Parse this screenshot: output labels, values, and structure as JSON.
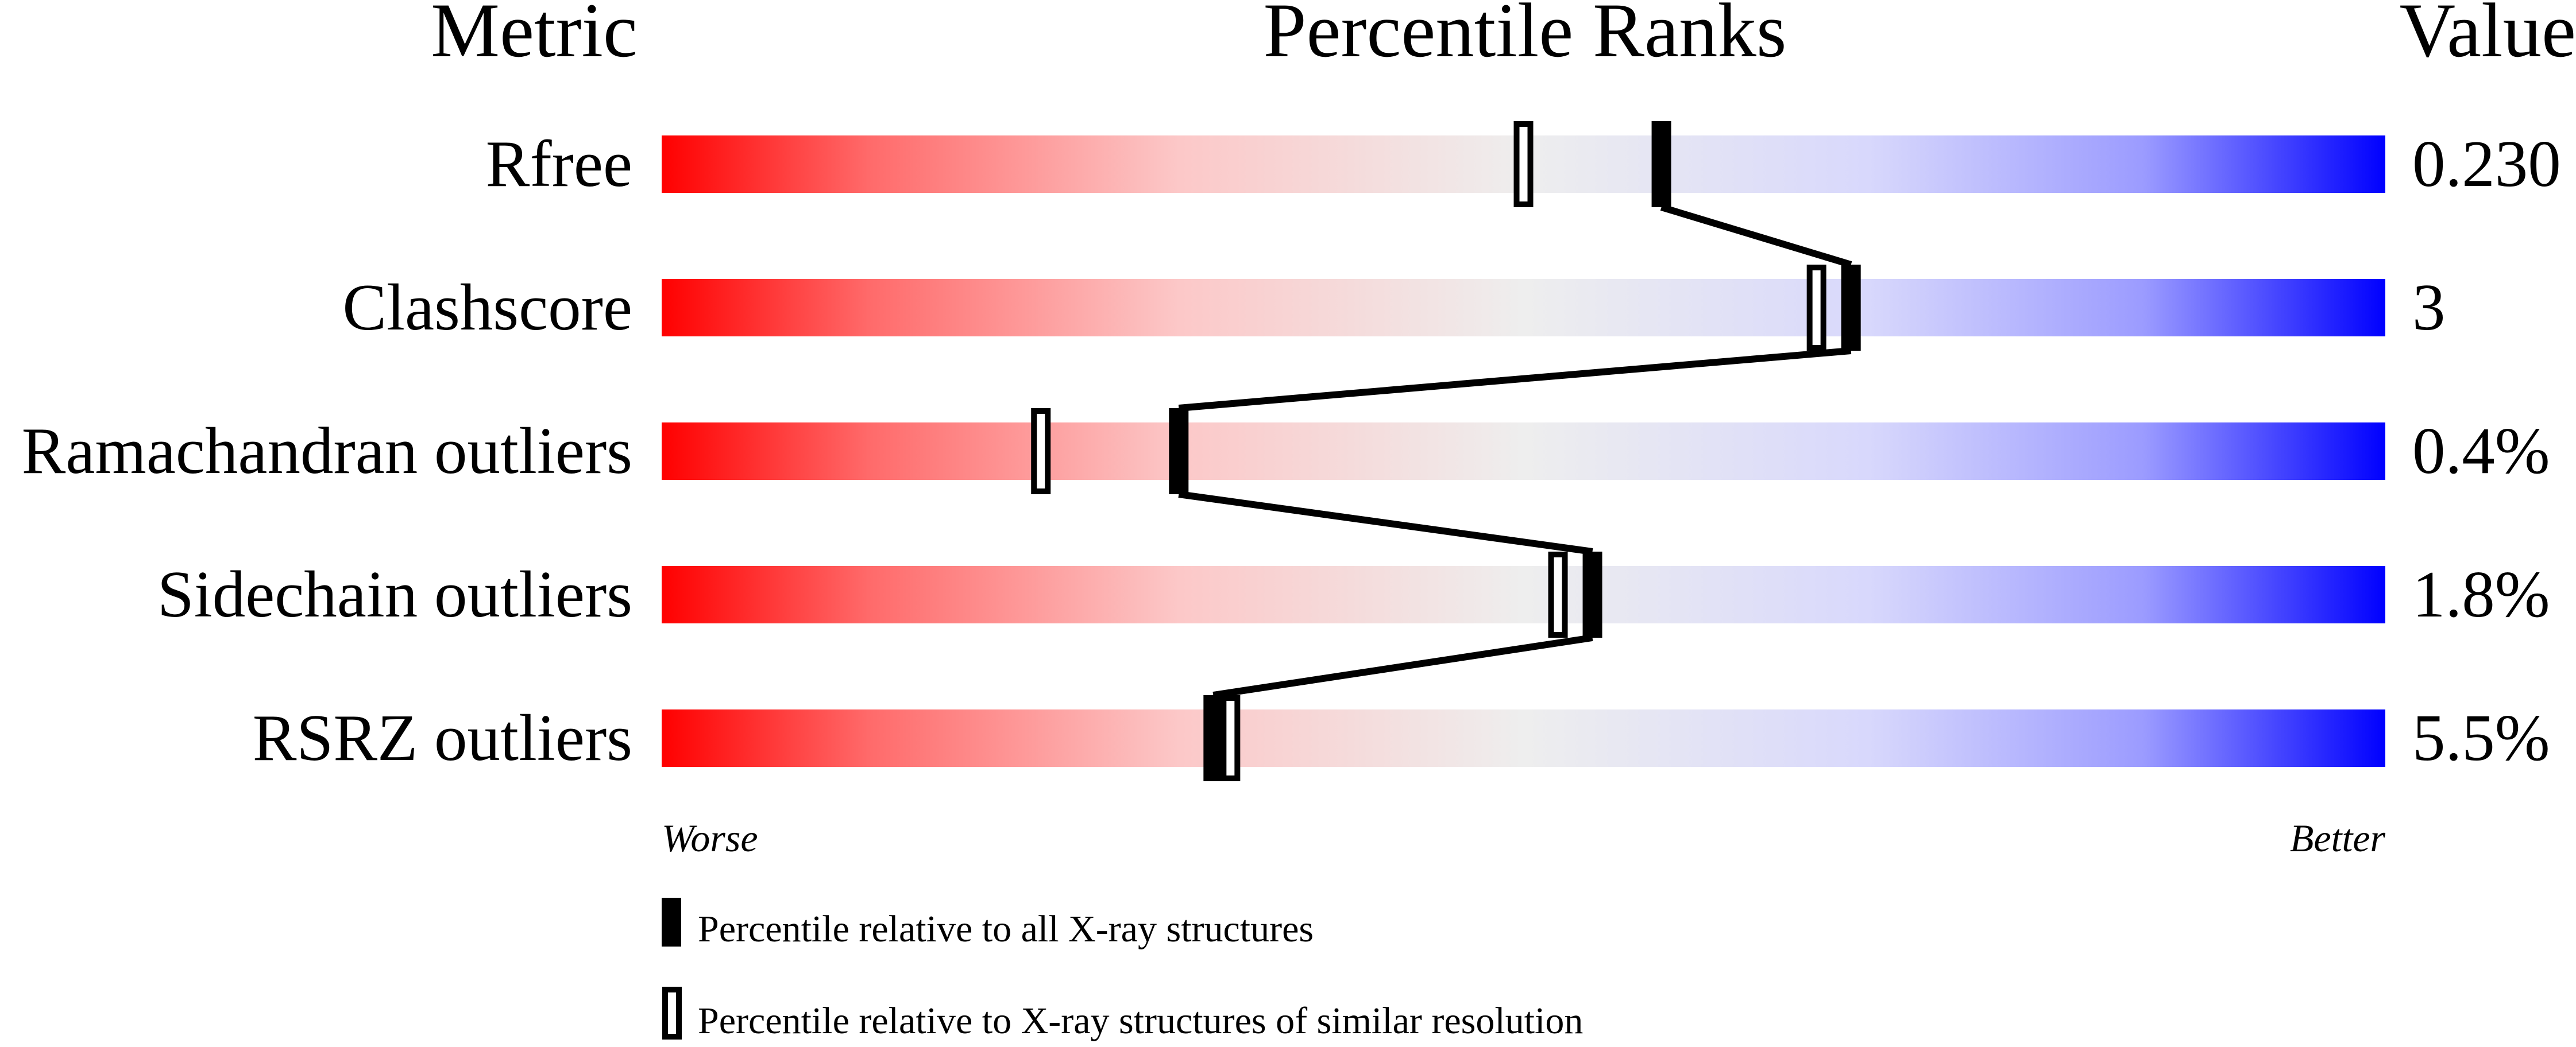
{
  "chart_data": {
    "type": "table",
    "headers": {
      "metric": "Metric",
      "ranks": "Percentile Ranks",
      "value": "Value"
    },
    "xlim": [
      0,
      100
    ],
    "axis_labels": {
      "left": "Worse",
      "right": "Better"
    },
    "rows": [
      {
        "metric": "Rfree",
        "value": "0.230",
        "percentile_all": 58,
        "percentile_similar": 50
      },
      {
        "metric": "Clashscore",
        "value": "3",
        "percentile_all": 69,
        "percentile_similar": 67
      },
      {
        "metric": "Ramachandran outliers",
        "value": "0.4%",
        "percentile_all": 30,
        "percentile_similar": 22
      },
      {
        "metric": "Sidechain outliers",
        "value": "1.8%",
        "percentile_all": 54,
        "percentile_similar": 52
      },
      {
        "metric": "RSRZ outliers",
        "value": "5.5%",
        "percentile_all": 32,
        "percentile_similar": 33
      }
    ],
    "legend": [
      {
        "marker": "filled",
        "label": "Percentile relative to all X-ray structures"
      },
      {
        "marker": "open",
        "label": "Percentile relative to X-ray structures of similar resolution"
      }
    ],
    "colors": {
      "worse": "#ff0000",
      "middle": "#eeeeee",
      "better": "#0000ff"
    }
  }
}
